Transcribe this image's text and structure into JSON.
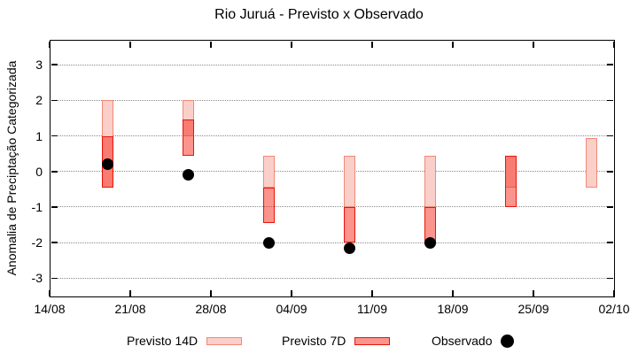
{
  "title": "Rio Juruá - Previsto x Observado",
  "axes": {
    "y_label": "Anomalia de Preciptação Categorizada",
    "y_ticks": [
      3,
      2,
      1,
      0,
      -1,
      -2,
      -3
    ],
    "x_ticks": [
      {
        "day": 0,
        "label": "14/08"
      },
      {
        "day": 7,
        "label": "21/08"
      },
      {
        "day": 14,
        "label": "28/08"
      },
      {
        "day": 21,
        "label": "04/09"
      },
      {
        "day": 28,
        "label": "11/09"
      },
      {
        "day": 35,
        "label": "18/09"
      },
      {
        "day": 42,
        "label": "25/09"
      },
      {
        "day": 49,
        "label": "02/10"
      }
    ]
  },
  "colors": {
    "p14_fill": "#fbcfc9",
    "p14_border": "#f18977",
    "p7_fill": "rgba(245,41,25,0.5)",
    "p7_border": "#e91408",
    "observed": "#000000",
    "grid": "#8a8a8a"
  },
  "legend": {
    "items": [
      {
        "label": "Previsto 14D",
        "marker": "box-light-pink"
      },
      {
        "label": "Previsto 7D",
        "marker": "box-red"
      },
      {
        "label": "Observado",
        "marker": "black-dot"
      }
    ]
  },
  "chart_data": {
    "type": "bar",
    "subtype": "range-bars-with-scatter",
    "title": "Rio Juruá - Previsto x Observado",
    "xlabel": "",
    "ylabel": "Anomalia de Preciptação Categorizada",
    "ylim": [
      -3.5,
      3.7
    ],
    "xlim_days": [
      0,
      49
    ],
    "x_tick_labels": [
      "14/08",
      "21/08",
      "28/08",
      "04/09",
      "11/09",
      "18/09",
      "25/09",
      "02/10"
    ],
    "grid": "horizontal-dotted",
    "legend_position": "bottom",
    "series": [
      {
        "name": "Previsto 14D",
        "type": "range",
        "data": [
          {
            "day": 5,
            "lo": -0.45,
            "hi": 2.0
          },
          {
            "day": 12,
            "lo": 1.0,
            "hi": 2.0
          },
          {
            "day": 19,
            "lo": -0.45,
            "hi": 0.45
          },
          {
            "day": 26,
            "lo": -1.0,
            "hi": 0.45
          },
          {
            "day": 33,
            "lo": -1.0,
            "hi": 0.45
          },
          {
            "day": 40,
            "lo": -0.45,
            "hi": 0.45
          },
          {
            "day": 47,
            "lo": -0.45,
            "hi": 0.95
          }
        ]
      },
      {
        "name": "Previsto 7D",
        "type": "range",
        "data": [
          {
            "day": 5,
            "lo": -0.45,
            "hi": 1.0
          },
          {
            "day": 12,
            "lo": 0.45,
            "hi": 1.45
          },
          {
            "day": 19,
            "lo": -1.45,
            "hi": -0.45
          },
          {
            "day": 26,
            "lo": -2.0,
            "hi": -1.0
          },
          {
            "day": 33,
            "lo": -2.0,
            "hi": -1.0
          },
          {
            "day": 40,
            "lo": -1.0,
            "hi": 0.45
          }
        ]
      },
      {
        "name": "Observado",
        "type": "scatter",
        "data": [
          {
            "day": 5,
            "y": 0.2
          },
          {
            "day": 12,
            "y": -0.1
          },
          {
            "day": 19,
            "y": -2.0
          },
          {
            "day": 26,
            "y": -2.15
          },
          {
            "day": 33,
            "y": -2.0
          }
        ]
      }
    ]
  }
}
